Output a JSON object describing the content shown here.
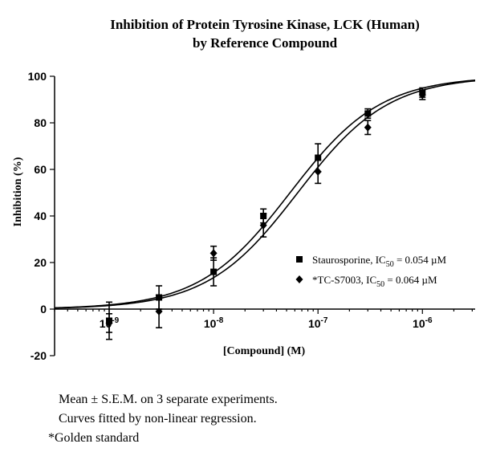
{
  "chart_data": {
    "type": "scatter",
    "title_lines": [
      "Inhibition of Protein Tyrosine Kinase, LCK (Human)",
      "by Reference Compound"
    ],
    "xlabel": "[Compound] (M)",
    "ylabel": "Inhibition (%)",
    "x_scale": "log",
    "xlim": [
      3e-10,
      3.2e-06
    ],
    "ylim": [
      -20,
      100
    ],
    "y_ticks": [
      {
        "value": -20,
        "label": "-20"
      },
      {
        "value": 0,
        "label": "0"
      },
      {
        "value": 20,
        "label": "20"
      },
      {
        "value": 40,
        "label": "40"
      },
      {
        "value": 60,
        "label": "60"
      },
      {
        "value": 80,
        "label": "80"
      },
      {
        "value": 100,
        "label": "100"
      }
    ],
    "x_ticks": [
      {
        "value": 1e-09,
        "base": "10",
        "exp": "-9"
      },
      {
        "value": 1e-08,
        "base": "10",
        "exp": "-8"
      },
      {
        "value": 1e-07,
        "base": "10",
        "exp": "-7"
      },
      {
        "value": 1e-06,
        "base": "10",
        "exp": "-6"
      }
    ],
    "legend_position": "bottom-right",
    "grid": false,
    "series": [
      {
        "marker": "square",
        "legend": {
          "name": "Staurosporine, IC",
          "sub": "50",
          "rest": " = 0.054 µM"
        },
        "ic50": 5.4e-08,
        "hill": 1,
        "x": [
          1e-09,
          3e-09,
          1e-08,
          3e-08,
          1e-07,
          3e-07,
          1e-06
        ],
        "y": [
          -5,
          5,
          16,
          40,
          65,
          84,
          93
        ],
        "error": [
          8,
          5,
          6,
          3,
          6,
          2,
          2
        ]
      },
      {
        "marker": "diamond",
        "legend": {
          "name": "*TC-S7003, IC",
          "sub": "50",
          "rest": " = 0.064 µM"
        },
        "ic50": 6.4e-08,
        "hill": 1,
        "x": [
          1e-09,
          3e-09,
          1e-08,
          3e-08,
          1e-07,
          3e-07,
          1e-06
        ],
        "y": [
          -6,
          -1,
          24,
          36,
          59,
          78,
          92
        ],
        "error": [
          4,
          7,
          3,
          5,
          5,
          3,
          2
        ]
      }
    ]
  },
  "notes": [
    "Mean ± S.E.M. on 3 separate experiments.",
    "Curves fitted by non-linear regression.",
    "*Golden standard"
  ]
}
